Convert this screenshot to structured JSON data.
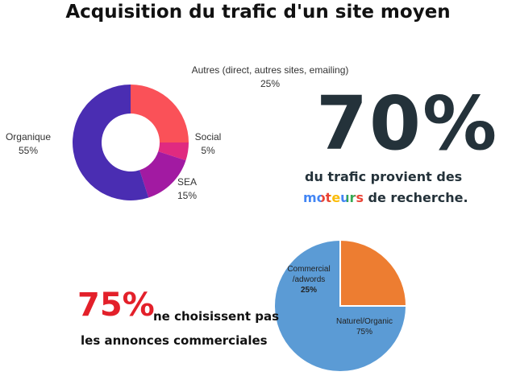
{
  "title": "Acquisition du trafic d'un site moyen",
  "chart_data": [
    {
      "type": "donut",
      "categories": [
        "Autres (direct, autres sites, emailing)",
        "Social",
        "SEA",
        "Organique"
      ],
      "values": [
        25,
        5,
        15,
        55
      ],
      "value_labels": [
        "25%",
        "5%",
        "15%",
        "55%"
      ],
      "colors": [
        "#fa5158",
        "#e02a80",
        "#a21aa2",
        "#4a2db2"
      ]
    },
    {
      "type": "pie",
      "categories": [
        "Commercial /adwords",
        "Naturel/Organic"
      ],
      "values": [
        25,
        75
      ],
      "value_labels": [
        "25%",
        "75%"
      ],
      "colors": [
        "#ed7d31",
        "#5b9bd5"
      ]
    }
  ],
  "highlight_search": {
    "figure": "70%",
    "line1": "du trafic provient des",
    "word": "moteurs",
    "line2": "de recherche."
  },
  "highlight_ads": {
    "figure": "75%",
    "line1": "ne choisissent pas",
    "line2": "les annonces commerciales"
  }
}
